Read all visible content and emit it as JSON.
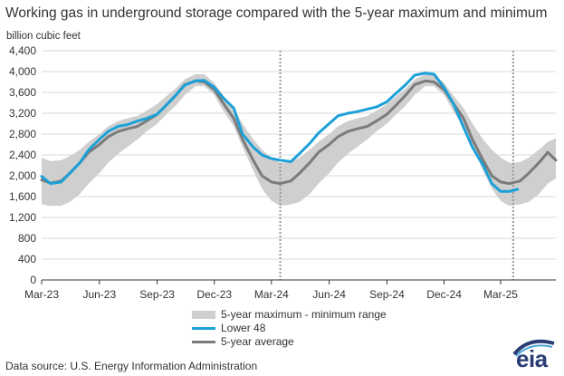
{
  "chart_data": {
    "type": "area",
    "title": "Working gas in underground  storage compared with the 5-year maximum and minimum",
    "ylabel": "billion cubic feet",
    "xlabel": "",
    "ylim": [
      0,
      4400
    ],
    "yticks": [
      0,
      400,
      800,
      1200,
      1600,
      2000,
      2400,
      2800,
      3200,
      3600,
      4000,
      4400
    ],
    "ytick_labels": [
      "0",
      "400",
      "800",
      "1,200",
      "1,600",
      "2,000",
      "2,400",
      "2,800",
      "3,200",
      "3,600",
      "4,000",
      "4,400"
    ],
    "xlim": [
      "2023-03-01",
      "2025-05-28"
    ],
    "xticks": [
      {
        "date": "2023-03-01",
        "label": "Mar-23"
      },
      {
        "date": "2023-06-01",
        "label": "Jun-23"
      },
      {
        "date": "2023-09-01",
        "label": "Sep-23"
      },
      {
        "date": "2023-12-01",
        "label": "Dec-23"
      },
      {
        "date": "2024-03-01",
        "label": "Mar-24"
      },
      {
        "date": "2024-06-01",
        "label": "Jun-24"
      },
      {
        "date": "2024-09-01",
        "label": "Sep-24"
      },
      {
        "date": "2024-12-01",
        "label": "Dec-24"
      },
      {
        "date": "2025-03-01",
        "label": "Mar-25"
      }
    ],
    "reference_lines": [
      "2024-03-15",
      "2025-03-21"
    ],
    "grid": "horizontal",
    "legend_position": "bottom-center",
    "series": [
      {
        "name": "5-year maximum - minimum range",
        "type": "band",
        "color": "#cfcfcf",
        "x": [
          "2023-03-01",
          "2023-03-15",
          "2023-04-01",
          "2023-04-15",
          "2023-05-01",
          "2023-05-15",
          "2023-06-01",
          "2023-06-15",
          "2023-07-01",
          "2023-07-15",
          "2023-08-01",
          "2023-08-15",
          "2023-09-01",
          "2023-09-15",
          "2023-10-01",
          "2023-10-15",
          "2023-11-01",
          "2023-11-15",
          "2023-12-01",
          "2023-12-15",
          "2024-01-01",
          "2024-01-15",
          "2024-02-01",
          "2024-02-15",
          "2024-03-01",
          "2024-03-15",
          "2024-04-01",
          "2024-04-15",
          "2024-05-01",
          "2024-05-15",
          "2024-06-01",
          "2024-06-15",
          "2024-07-01",
          "2024-07-15",
          "2024-08-01",
          "2024-08-15",
          "2024-09-01",
          "2024-09-15",
          "2024-10-01",
          "2024-10-15",
          "2024-11-01",
          "2024-11-15",
          "2024-12-01",
          "2024-12-15",
          "2025-01-01",
          "2025-01-15",
          "2025-02-01",
          "2025-02-15",
          "2025-03-01",
          "2025-03-15",
          "2025-04-01",
          "2025-04-15",
          "2025-05-01",
          "2025-05-15",
          "2025-05-28"
        ],
        "upper": [
          2350,
          2280,
          2300,
          2380,
          2500,
          2650,
          2800,
          2950,
          3050,
          3100,
          3150,
          3250,
          3380,
          3520,
          3680,
          3850,
          3950,
          3950,
          3780,
          3550,
          3300,
          3000,
          2700,
          2500,
          2350,
          2250,
          2260,
          2350,
          2500,
          2650,
          2800,
          2950,
          3050,
          3100,
          3150,
          3250,
          3380,
          3520,
          3680,
          3850,
          3950,
          3950,
          3780,
          3550,
          3300,
          3000,
          2700,
          2500,
          2350,
          2250,
          2260,
          2350,
          2500,
          2650,
          2720
        ],
        "lower": [
          1450,
          1420,
          1420,
          1500,
          1650,
          1850,
          2050,
          2250,
          2420,
          2550,
          2700,
          2850,
          3000,
          3170,
          3350,
          3550,
          3720,
          3720,
          3550,
          3250,
          2950,
          2550,
          2100,
          1750,
          1520,
          1420,
          1450,
          1500,
          1650,
          1850,
          2050,
          2250,
          2420,
          2550,
          2700,
          2850,
          3000,
          3170,
          3350,
          3550,
          3720,
          3720,
          3550,
          3250,
          2950,
          2550,
          2100,
          1750,
          1520,
          1420,
          1450,
          1500,
          1650,
          1850,
          1950
        ]
      },
      {
        "name": "Lower 48",
        "type": "line",
        "color": "#1ba1d8",
        "x": [
          "2023-03-01",
          "2023-03-15",
          "2023-04-01",
          "2023-04-15",
          "2023-05-01",
          "2023-05-15",
          "2023-06-01",
          "2023-06-15",
          "2023-07-01",
          "2023-07-15",
          "2023-08-01",
          "2023-08-15",
          "2023-09-01",
          "2023-09-15",
          "2023-10-01",
          "2023-10-15",
          "2023-11-01",
          "2023-11-15",
          "2023-12-01",
          "2023-12-15",
          "2024-01-01",
          "2024-01-15",
          "2024-02-01",
          "2024-02-15",
          "2024-03-01",
          "2024-03-15",
          "2024-04-01",
          "2024-04-15",
          "2024-05-01",
          "2024-05-15",
          "2024-06-01",
          "2024-06-15",
          "2024-07-01",
          "2024-07-15",
          "2024-08-01",
          "2024-08-15",
          "2024-09-01",
          "2024-09-15",
          "2024-10-01",
          "2024-10-15",
          "2024-11-01",
          "2024-11-15",
          "2024-12-01",
          "2024-12-15",
          "2025-01-01",
          "2025-01-15",
          "2025-02-01",
          "2025-02-15",
          "2025-03-01",
          "2025-03-15",
          "2025-03-28"
        ],
        "values": [
          1990,
          1850,
          1880,
          2050,
          2250,
          2500,
          2700,
          2850,
          2950,
          2980,
          3050,
          3100,
          3180,
          3350,
          3550,
          3740,
          3820,
          3830,
          3700,
          3500,
          3300,
          2800,
          2550,
          2400,
          2330,
          2300,
          2270,
          2430,
          2620,
          2820,
          3000,
          3150,
          3200,
          3230,
          3280,
          3320,
          3420,
          3580,
          3750,
          3930,
          3970,
          3950,
          3690,
          3400,
          2930,
          2550,
          2200,
          1850,
          1700,
          1700,
          1740
        ]
      },
      {
        "name": "5-year average",
        "type": "line",
        "color": "#7b7b7b",
        "x": [
          "2023-03-01",
          "2023-03-15",
          "2023-04-01",
          "2023-04-15",
          "2023-05-01",
          "2023-05-15",
          "2023-06-01",
          "2023-06-15",
          "2023-07-01",
          "2023-07-15",
          "2023-08-01",
          "2023-08-15",
          "2023-09-01",
          "2023-09-15",
          "2023-10-01",
          "2023-10-15",
          "2023-11-01",
          "2023-11-15",
          "2023-12-01",
          "2023-12-15",
          "2024-01-01",
          "2024-01-15",
          "2024-02-01",
          "2024-02-15",
          "2024-03-01",
          "2024-03-15",
          "2024-04-01",
          "2024-04-15",
          "2024-05-01",
          "2024-05-15",
          "2024-06-01",
          "2024-06-15",
          "2024-07-01",
          "2024-07-15",
          "2024-08-01",
          "2024-08-15",
          "2024-09-01",
          "2024-09-15",
          "2024-10-01",
          "2024-10-15",
          "2024-11-01",
          "2024-11-15",
          "2024-12-01",
          "2024-12-15",
          "2025-01-01",
          "2025-01-15",
          "2025-02-01",
          "2025-02-15",
          "2025-03-01",
          "2025-03-15",
          "2025-04-01",
          "2025-04-15",
          "2025-05-01",
          "2025-05-15",
          "2025-05-28"
        ],
        "values": [
          1920,
          1860,
          1900,
          2050,
          2250,
          2450,
          2600,
          2750,
          2850,
          2900,
          2950,
          3050,
          3180,
          3350,
          3550,
          3750,
          3820,
          3800,
          3650,
          3400,
          3100,
          2700,
          2300,
          2000,
          1880,
          1850,
          1900,
          2050,
          2250,
          2450,
          2600,
          2750,
          2850,
          2900,
          2950,
          3050,
          3180,
          3350,
          3550,
          3750,
          3820,
          3800,
          3650,
          3400,
          3100,
          2700,
          2300,
          2000,
          1880,
          1850,
          1900,
          2050,
          2250,
          2450,
          2300
        ]
      }
    ]
  },
  "legend": {
    "range_label": "5-year maximum - minimum range",
    "lower48_label": "Lower 48",
    "avg_label": "5-year average"
  },
  "source": "Data source:  U.S. Energy Information Administration",
  "logo": {
    "text": "eia",
    "color": "#2a3c73"
  }
}
